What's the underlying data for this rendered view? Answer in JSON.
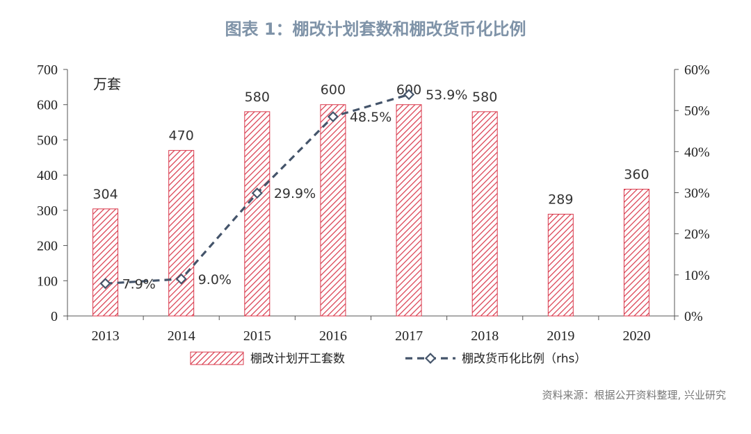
{
  "title": "图表 1：棚改计划套数和棚改货币化比例",
  "source": "资料来源：根据公开资料整理, 兴业研究",
  "chart_data": {
    "type": "bar",
    "categories": [
      "2013",
      "2014",
      "2015",
      "2016",
      "2017",
      "2018",
      "2019",
      "2020"
    ],
    "series": [
      {
        "name": "棚改计划开工套数",
        "type": "bar",
        "axis": "left",
        "values": [
          304,
          470,
          580,
          600,
          600,
          580,
          289,
          360
        ],
        "labels": [
          "304",
          "470",
          "580",
          "600",
          "600",
          "580",
          "289",
          "360"
        ],
        "color": "#d9374a"
      },
      {
        "name": "棚改货币化比例（rhs）",
        "type": "line",
        "axis": "right",
        "values": [
          7.9,
          9.0,
          29.9,
          48.5,
          53.9,
          null,
          null,
          null
        ],
        "labels": [
          "7.9%",
          "9.0%",
          "29.9%",
          "48.5%",
          "53.9%",
          "",
          "",
          ""
        ],
        "color": "#44546a"
      }
    ],
    "ylabel": "万套",
    "ylim": [
      0,
      700
    ],
    "yticks": [
      "0",
      "100",
      "200",
      "300",
      "400",
      "500",
      "600",
      "700"
    ],
    "y2lim": [
      0,
      60
    ],
    "y2ticks": [
      "0%",
      "10%",
      "20%",
      "30%",
      "40%",
      "50%",
      "60%"
    ],
    "grid": false,
    "legend_position": "bottom"
  }
}
